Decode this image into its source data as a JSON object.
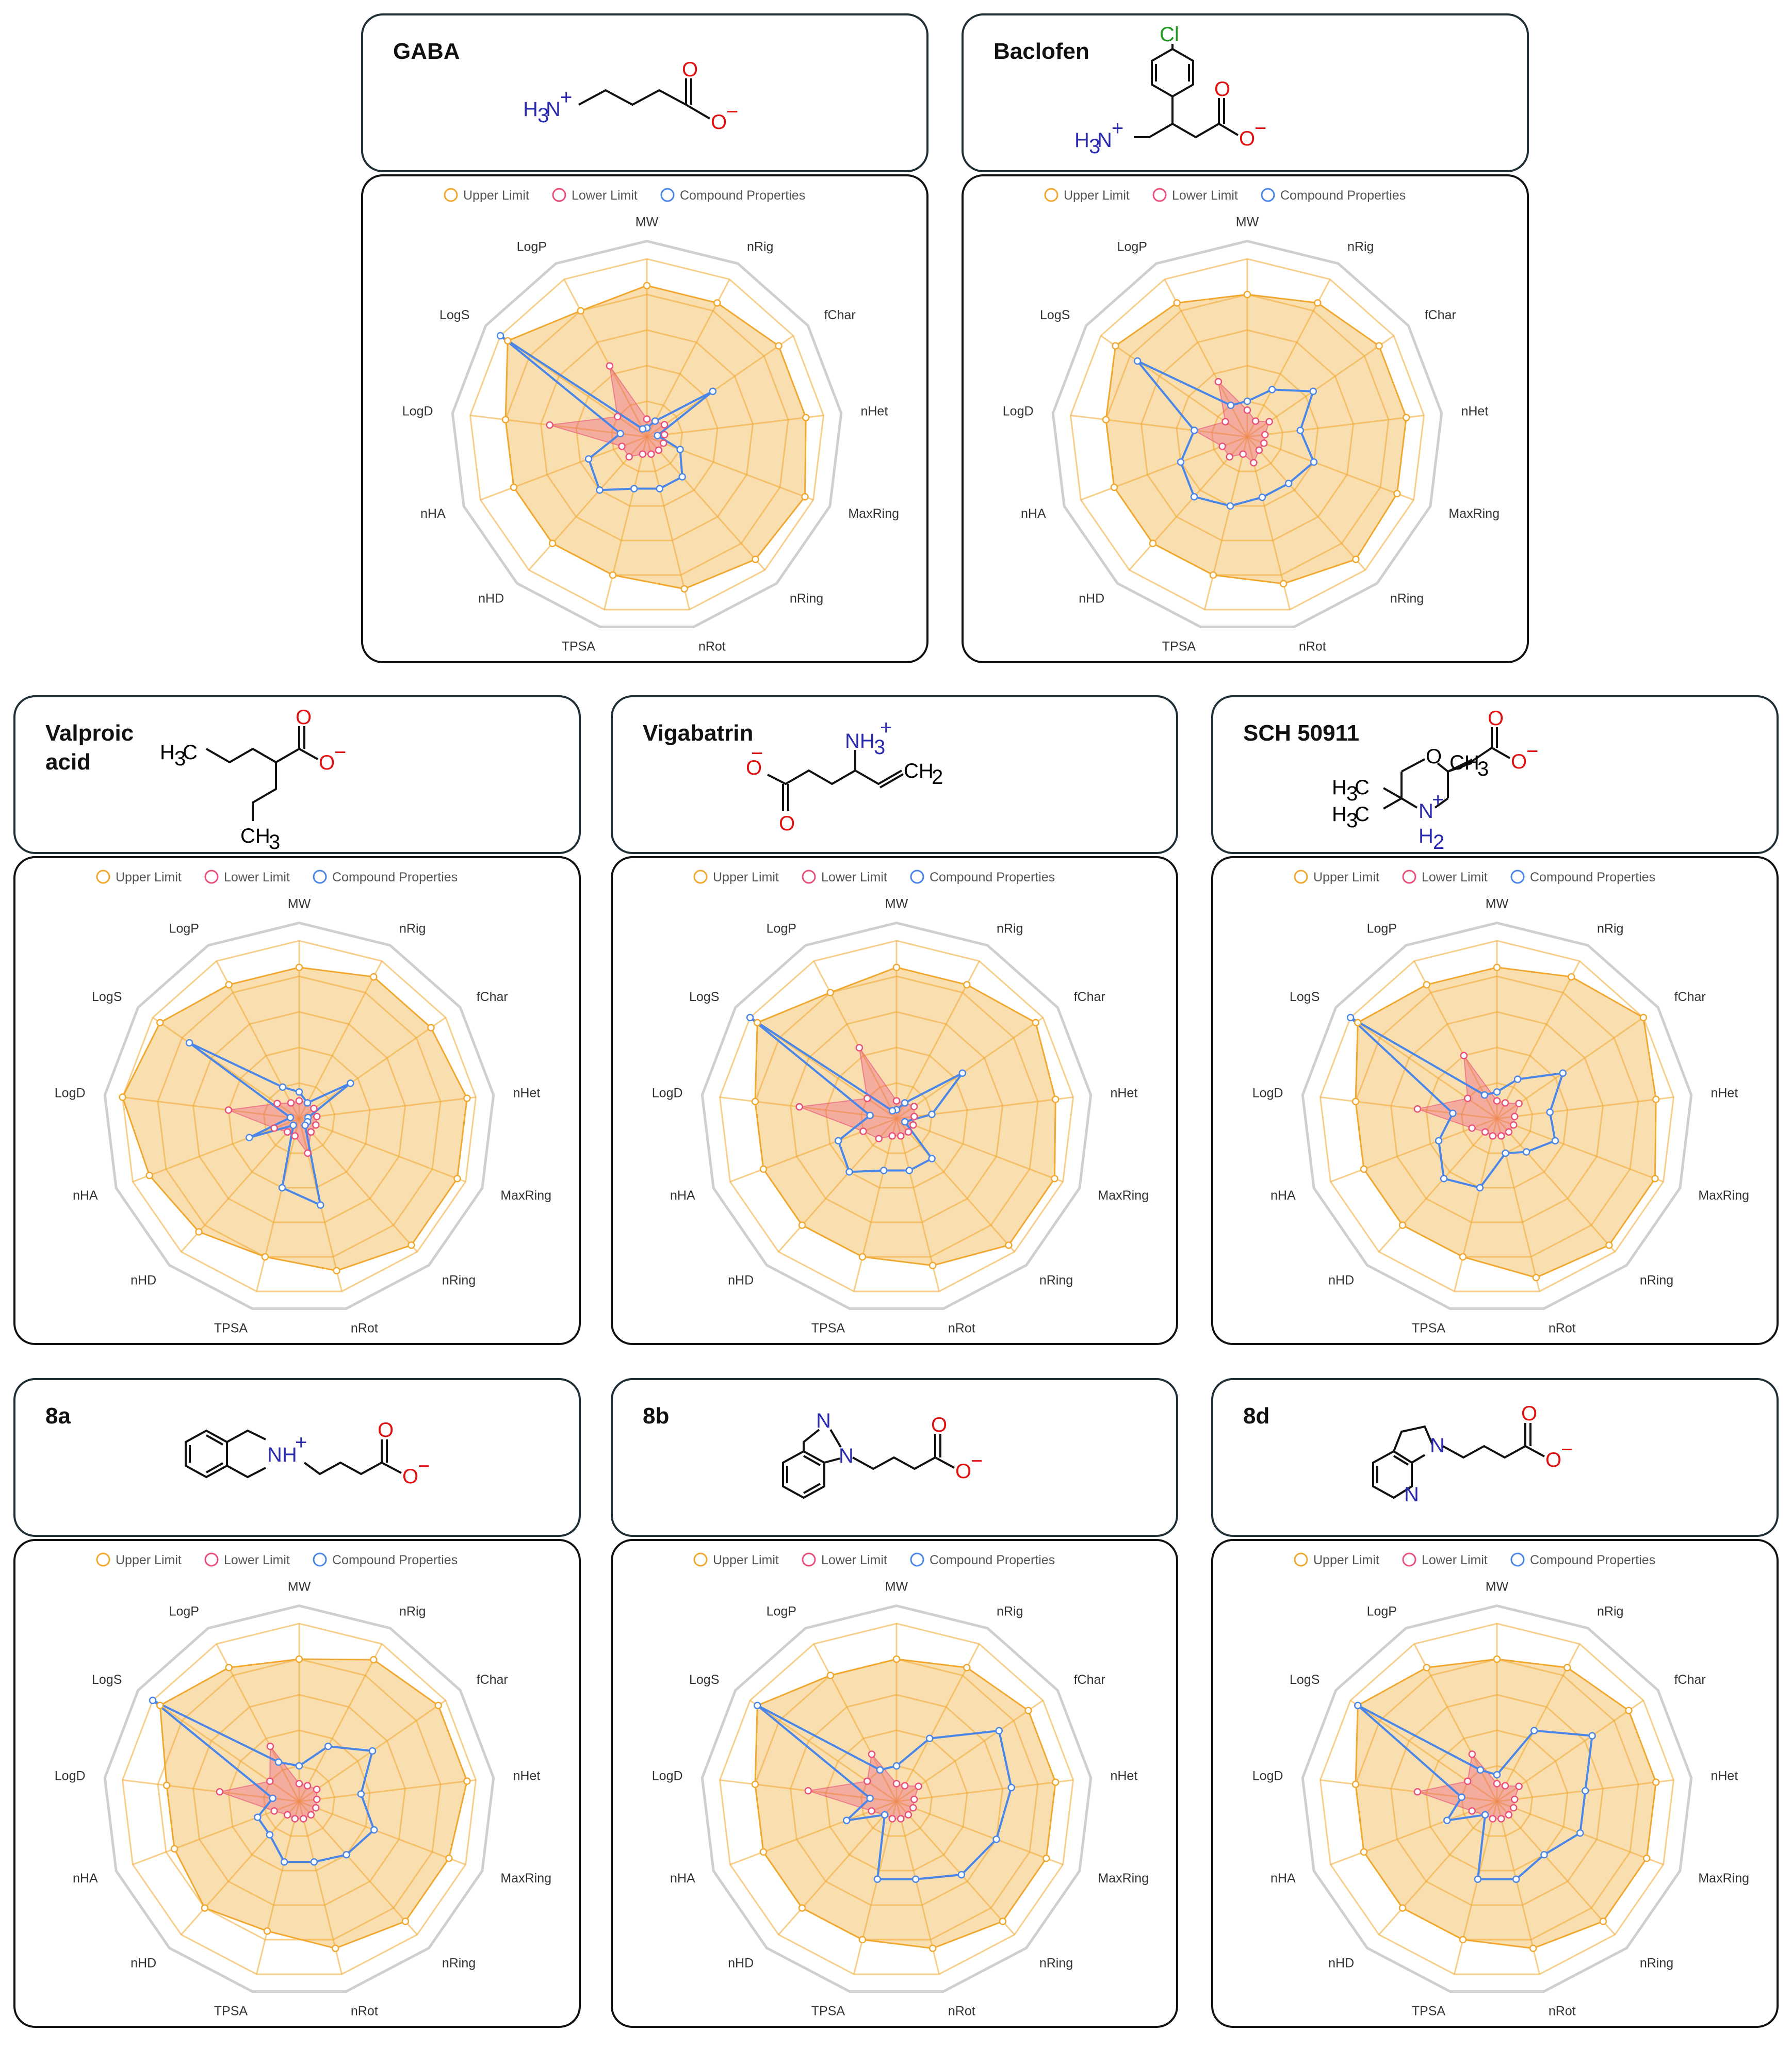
{
  "colors": {
    "upper_limit": "#f0a830",
    "lower_limit": "#e8507a",
    "compound": "#4a86e8",
    "grid_outer": "#cfcfcf",
    "nitrogen": "#2b2bb0",
    "oxygen": "#e01010",
    "chlorine": "#1f9a1f"
  },
  "legend": {
    "upper": "Upper Limit",
    "lower": "Lower Limit",
    "compound": "Compound Properties"
  },
  "axes": [
    "MW",
    "nRig",
    "fChar",
    "nHet",
    "MaxRing",
    "nRing",
    "nRot",
    "TPSA",
    "nHD",
    "nHA",
    "LogD",
    "LogS",
    "LogP"
  ],
  "structures": {
    "gaba": {
      "h3n": "H",
      "n": "N",
      "plus": "+",
      "o_top": "O",
      "o_minus": "O",
      "minus": "−",
      "sub3": "3"
    },
    "baclofen": {
      "cl": "Cl",
      "h3n": "H",
      "n": "N",
      "plus": "+",
      "o_top": "O",
      "o_minus": "O",
      "minus": "−",
      "sub3": "3"
    },
    "valproic": {
      "h3c": "H",
      "c": "C",
      "ch3": "CH",
      "sub3": "3",
      "o_top": "O",
      "o_minus": "O",
      "minus": "−"
    },
    "vigabatrin": {
      "nh3": "NH",
      "sub3": "3",
      "plus": "+",
      "ch2": "CH",
      "sub2": "2",
      "o_top": "O",
      "o_bottom": "O",
      "minus": "−"
    },
    "sch": {
      "o_ring": "O",
      "ch3": "CH",
      "sub3": "3",
      "h3c_a": "H",
      "h3c_b": "H",
      "c": "C",
      "n": "N",
      "h2": "H",
      "sub2": "2",
      "plus": "+",
      "o_top": "O",
      "o_minus": "O",
      "minus": "−"
    },
    "8a": {
      "nh": "NH",
      "plus": "+",
      "o_top": "O",
      "o_minus": "O",
      "minus": "−"
    },
    "8b": {
      "n_top": "N",
      "n_bottom": "N",
      "o_top": "O",
      "o_minus": "O",
      "minus": "−"
    },
    "8d": {
      "n_ring": "N",
      "n_py": "N",
      "o_top": "O",
      "o_minus": "O",
      "minus": "−"
    }
  },
  "chart_data": [
    {
      "type": "radar",
      "compound": "GABA",
      "title": "GABA",
      "axes": [
        "MW",
        "nRig",
        "fChar",
        "nHet",
        "MaxRing",
        "nRing",
        "nRot",
        "TPSA",
        "nHD",
        "nHA",
        "LogD",
        "LogS",
        "LogP"
      ],
      "range": [
        0,
        1
      ],
      "series": [
        {
          "name": "Upper Limit",
          "values": [
            0.85,
            0.85,
            0.9,
            0.9,
            0.95,
            0.92,
            0.88,
            0.8,
            0.8,
            0.8,
            0.8,
            0.95,
            0.8
          ]
        },
        {
          "name": "Lower Limit",
          "values": [
            0.1,
            0.1,
            0.12,
            0.1,
            0.1,
            0.1,
            0.1,
            0.1,
            0.15,
            0.15,
            0.55,
            0.2,
            0.45
          ]
        },
        {
          "name": "Compound Properties",
          "values": [
            0.05,
            0.1,
            0.45,
            0.06,
            0.2,
            0.3,
            0.3,
            0.3,
            0.4,
            0.35,
            0.15,
            1.0,
            0.05
          ]
        }
      ]
    },
    {
      "type": "radar",
      "compound": "Baclofen",
      "title": "Baclofen",
      "axes": [
        "MW",
        "nRig",
        "fChar",
        "nHet",
        "MaxRing",
        "nRing",
        "nRot",
        "TPSA",
        "nHD",
        "nHA",
        "LogD",
        "LogS",
        "LogP"
      ],
      "range": [
        0,
        1
      ],
      "series": [
        {
          "name": "Upper Limit",
          "values": [
            0.8,
            0.85,
            0.9,
            0.9,
            0.9,
            0.92,
            0.85,
            0.8,
            0.8,
            0.8,
            0.8,
            0.9,
            0.85
          ]
        },
        {
          "name": "Lower Limit",
          "values": [
            0.15,
            0.1,
            0.15,
            0.1,
            0.1,
            0.1,
            0.15,
            0.1,
            0.15,
            0.15,
            0.3,
            0.15,
            0.35
          ]
        },
        {
          "name": "Compound Properties",
          "values": [
            0.2,
            0.3,
            0.45,
            0.3,
            0.4,
            0.35,
            0.35,
            0.4,
            0.45,
            0.4,
            0.3,
            0.75,
            0.2
          ]
        }
      ]
    },
    {
      "type": "radar",
      "compound": "Valproic acid",
      "title": "Valproic\nacid",
      "axes": [
        "MW",
        "nRig",
        "fChar",
        "nHet",
        "MaxRing",
        "nRing",
        "nRot",
        "TPSA",
        "nHD",
        "nHA",
        "LogD",
        "LogS",
        "LogP"
      ],
      "range": [
        0,
        1
      ],
      "series": [
        {
          "name": "Upper Limit",
          "values": [
            0.85,
            0.9,
            0.9,
            0.95,
            0.95,
            0.95,
            0.88,
            0.8,
            0.85,
            0.9,
            1.0,
            0.95,
            0.85
          ]
        },
        {
          "name": "Lower Limit",
          "values": [
            0.1,
            0.1,
            0.1,
            0.1,
            0.1,
            0.1,
            0.2,
            0.1,
            0.1,
            0.15,
            0.4,
            0.15,
            0.1
          ]
        },
        {
          "name": "Compound Properties",
          "values": [
            0.15,
            0.1,
            0.35,
            0.05,
            0.05,
            0.05,
            0.5,
            0.4,
            0.05,
            0.3,
            0.05,
            0.75,
            0.2
          ]
        }
      ]
    },
    {
      "type": "radar",
      "compound": "Vigabatrin",
      "title": "Vigabatrin",
      "axes": [
        "MW",
        "nRig",
        "fChar",
        "nHet",
        "MaxRing",
        "nRing",
        "nRot",
        "TPSA",
        "nHD",
        "nHA",
        "LogD",
        "LogS",
        "LogP"
      ],
      "range": [
        0,
        1
      ],
      "series": [
        {
          "name": "Upper Limit",
          "values": [
            0.85,
            0.85,
            0.95,
            0.9,
            0.95,
            0.95,
            0.85,
            0.8,
            0.8,
            0.8,
            0.8,
            0.95,
            0.8
          ]
        },
        {
          "name": "Lower Limit",
          "values": [
            0.1,
            0.1,
            0.12,
            0.1,
            0.1,
            0.1,
            0.1,
            0.1,
            0.15,
            0.2,
            0.55,
            0.2,
            0.45
          ]
        },
        {
          "name": "Compound Properties",
          "values": [
            0.05,
            0.1,
            0.45,
            0.2,
            0.05,
            0.3,
            0.3,
            0.3,
            0.4,
            0.35,
            0.15,
            1.0,
            0.05
          ]
        }
      ]
    },
    {
      "type": "radar",
      "compound": "SCH 50911",
      "title": "SCH 50911",
      "axes": [
        "MW",
        "nRig",
        "fChar",
        "nHet",
        "MaxRing",
        "nRing",
        "nRot",
        "TPSA",
        "nHD",
        "nHA",
        "LogD",
        "LogS",
        "LogP"
      ],
      "range": [
        0,
        1
      ],
      "series": [
        {
          "name": "Upper Limit",
          "values": [
            0.85,
            0.9,
            1.0,
            0.9,
            0.95,
            0.95,
            0.92,
            0.8,
            0.8,
            0.8,
            0.8,
            0.95,
            0.85
          ]
        },
        {
          "name": "Lower Limit",
          "values": [
            0.1,
            0.1,
            0.15,
            0.1,
            0.1,
            0.1,
            0.1,
            0.1,
            0.1,
            0.15,
            0.45,
            0.2,
            0.4
          ]
        },
        {
          "name": "Compound Properties",
          "values": [
            0.15,
            0.25,
            0.45,
            0.3,
            0.35,
            0.25,
            0.2,
            0.4,
            0.45,
            0.35,
            0.25,
            1.0,
            0.15
          ]
        }
      ]
    },
    {
      "type": "radar",
      "compound": "8a",
      "title": "8a",
      "axes": [
        "MW",
        "nRig",
        "fChar",
        "nHet",
        "MaxRing",
        "nRing",
        "nRot",
        "TPSA",
        "nHD",
        "nHA",
        "LogD",
        "LogS",
        "LogP"
      ],
      "range": [
        0,
        1
      ],
      "series": [
        {
          "name": "Upper Limit",
          "values": [
            0.8,
            0.9,
            0.95,
            0.95,
            0.9,
            0.9,
            0.85,
            0.75,
            0.8,
            0.75,
            0.75,
            0.95,
            0.85
          ]
        },
        {
          "name": "Lower Limit",
          "values": [
            0.1,
            0.1,
            0.12,
            0.1,
            0.1,
            0.1,
            0.1,
            0.1,
            0.1,
            0.15,
            0.45,
            0.2,
            0.35
          ]
        },
        {
          "name": "Compound Properties",
          "values": [
            0.2,
            0.35,
            0.5,
            0.35,
            0.45,
            0.4,
            0.35,
            0.35,
            0.25,
            0.25,
            0.15,
            1.0,
            0.25
          ]
        }
      ]
    },
    {
      "type": "radar",
      "compound": "8b",
      "title": "8b",
      "axes": [
        "MW",
        "nRig",
        "fChar",
        "nHet",
        "MaxRing",
        "nRing",
        "nRot",
        "TPSA",
        "nHD",
        "nHA",
        "LogD",
        "LogS",
        "LogP"
      ],
      "range": [
        0,
        1
      ],
      "series": [
        {
          "name": "Upper Limit",
          "values": [
            0.8,
            0.85,
            0.9,
            0.9,
            0.9,
            0.9,
            0.85,
            0.8,
            0.8,
            0.8,
            0.8,
            0.95,
            0.8
          ]
        },
        {
          "name": "Lower Limit",
          "values": [
            0.1,
            0.1,
            0.15,
            0.1,
            0.1,
            0.1,
            0.1,
            0.1,
            0.1,
            0.15,
            0.5,
            0.2,
            0.3
          ]
        },
        {
          "name": "Compound Properties",
          "values": [
            0.2,
            0.4,
            0.7,
            0.65,
            0.6,
            0.55,
            0.45,
            0.45,
            0.1,
            0.3,
            0.15,
            0.95,
            0.2
          ]
        }
      ]
    },
    {
      "type": "radar",
      "compound": "8d",
      "title": "8d",
      "axes": [
        "MW",
        "nRig",
        "fChar",
        "nHet",
        "MaxRing",
        "nRing",
        "nRot",
        "TPSA",
        "nHD",
        "nHA",
        "LogD",
        "LogS",
        "LogP"
      ],
      "range": [
        0,
        1
      ],
      "series": [
        {
          "name": "Upper Limit",
          "values": [
            0.8,
            0.85,
            0.9,
            0.9,
            0.9,
            0.9,
            0.85,
            0.8,
            0.8,
            0.8,
            0.8,
            0.95,
            0.85
          ]
        },
        {
          "name": "Lower Limit",
          "values": [
            0.1,
            0.1,
            0.15,
            0.1,
            0.1,
            0.1,
            0.1,
            0.1,
            0.1,
            0.15,
            0.45,
            0.2,
            0.3
          ]
        },
        {
          "name": "Compound Properties",
          "values": [
            0.15,
            0.45,
            0.65,
            0.5,
            0.5,
            0.4,
            0.45,
            0.45,
            0.1,
            0.3,
            0.2,
            0.95,
            0.2
          ]
        }
      ]
    }
  ]
}
